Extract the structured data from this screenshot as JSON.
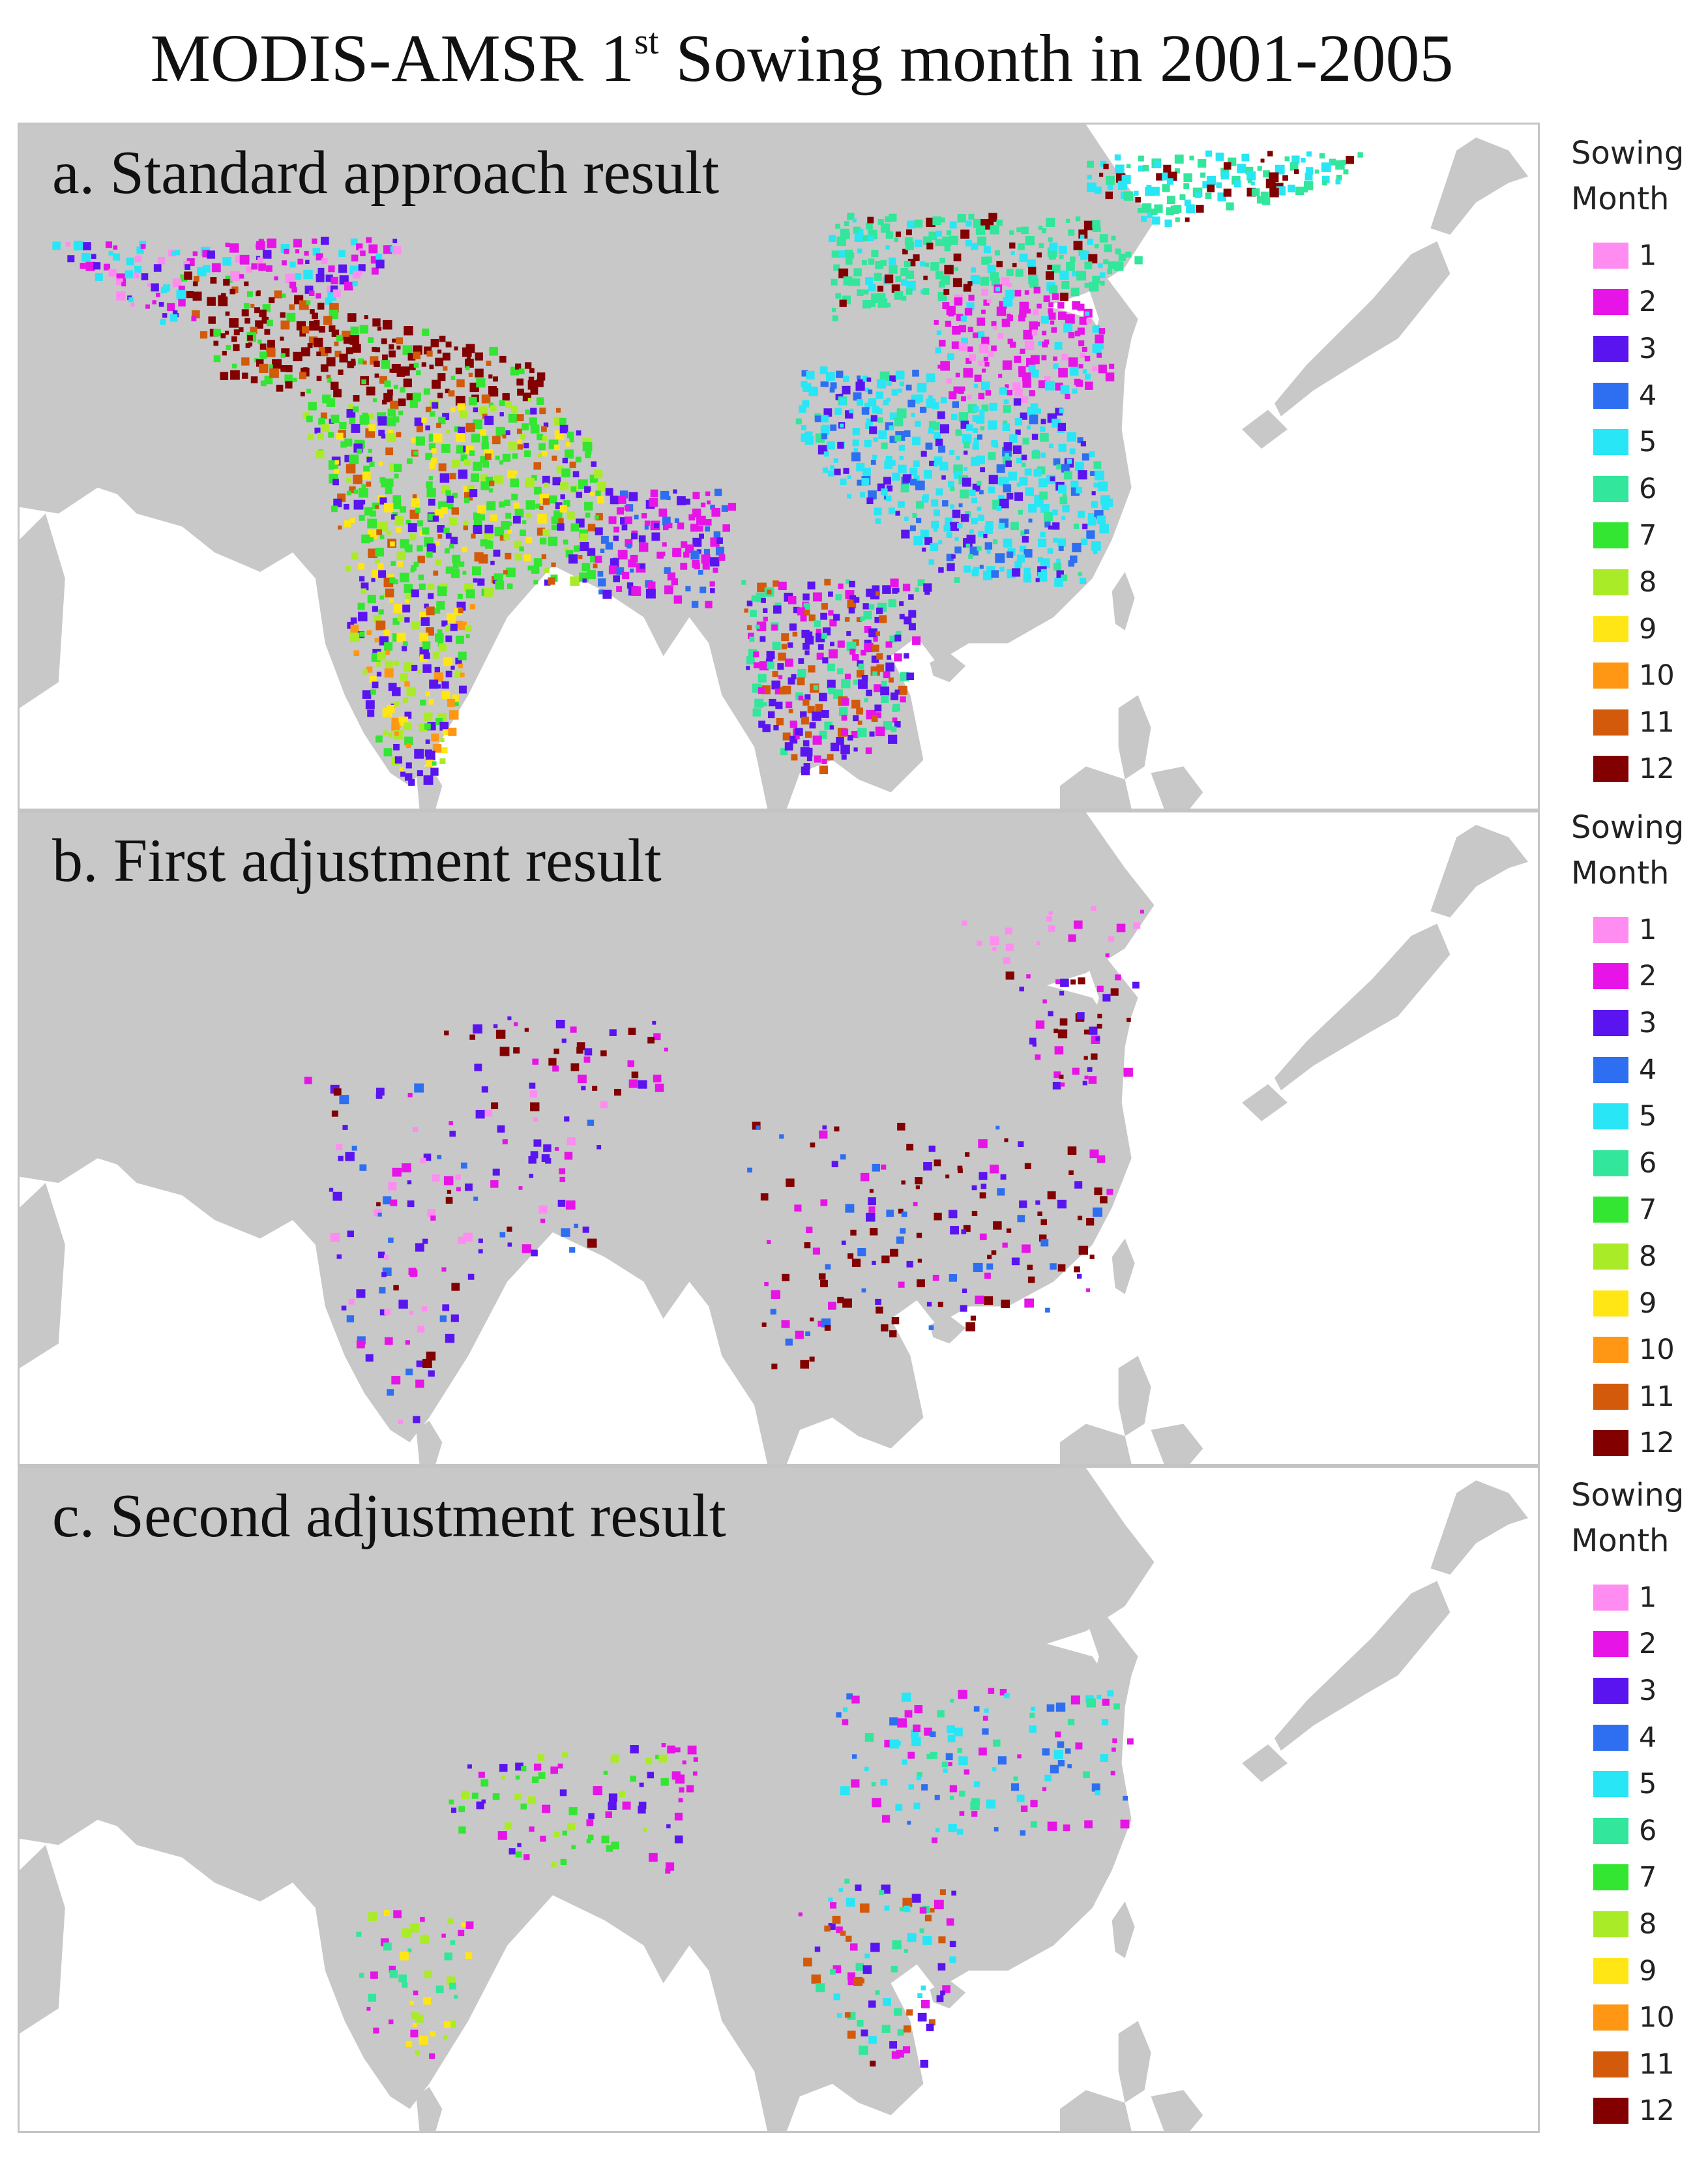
{
  "figure": {
    "title_main": "MODIS-AMSR 1",
    "title_sup": "st",
    "title_rest": " Sowing month in 2001-2005"
  },
  "panels": [
    {
      "label": "a. Standard approach result"
    },
    {
      "label": "b. First adjustment result"
    },
    {
      "label": "c. Second adjustment result"
    }
  ],
  "legend": {
    "title": "Sowing\nMonth",
    "items": [
      {
        "label": "1",
        "color": "#ff8cf0"
      },
      {
        "label": "2",
        "color": "#e614e6"
      },
      {
        "label": "3",
        "color": "#5a14f0"
      },
      {
        "label": "4",
        "color": "#2e6ef0"
      },
      {
        "label": "5",
        "color": "#28e6f5"
      },
      {
        "label": "6",
        "color": "#32e69b"
      },
      {
        "label": "7",
        "color": "#32e632"
      },
      {
        "label": "8",
        "color": "#aaeb28"
      },
      {
        "label": "9",
        "color": "#ffe614"
      },
      {
        "label": "10",
        "color": "#ff9614"
      },
      {
        "label": "11",
        "color": "#d25a0a"
      },
      {
        "label": "12",
        "color": "#820000"
      }
    ]
  },
  "map_colors": {
    "land": "#c8c8c8",
    "sea": "#ffffff"
  }
}
